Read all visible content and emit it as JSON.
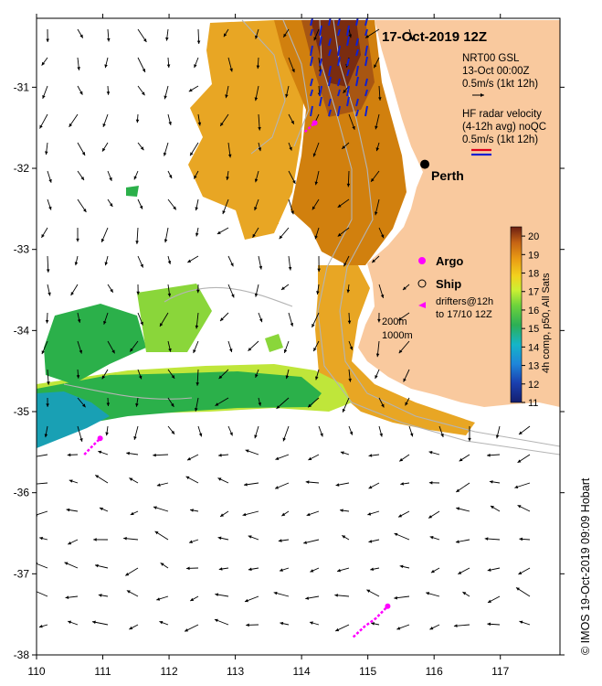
{
  "map": {
    "title": "17-Oct-2019 12Z",
    "city_label": "Perth",
    "nrt_legend": [
      "NRT00 GSL",
      "13-Oct 00:00Z",
      "0.5m/s (1kt 12h)"
    ],
    "hf_legend": [
      "HF radar velocity",
      "(4-12h avg) noQC",
      "0.5m/s (1kt 12h)"
    ],
    "argo_label": "Argo",
    "ship_label": "Ship",
    "drifter_legend": [
      "drifters@12h",
      "to 17/10 12Z"
    ],
    "isobath_labels": [
      "200m",
      "1000m"
    ],
    "colorbar_label": "4h comp, p50, All Sats",
    "credit": "© IMOS 19-Oct-2019 09:09 Hobart",
    "colors": {
      "land": "#f9c99e",
      "hf_red": "#e0001b",
      "hf_blue": "#1020d0",
      "drifter": "#ff00ff",
      "isobath": "#b4b4b4"
    }
  },
  "chart_data": {
    "type": "heatmap",
    "xaxis": {
      "range": [
        110,
        117.9
      ],
      "ticks": [
        110,
        111,
        112,
        113,
        114,
        115,
        116,
        117
      ]
    },
    "yaxis": {
      "range": [
        -38,
        -30.15
      ],
      "ticks": [
        -31,
        -32,
        -33,
        -34,
        -35,
        -36,
        -37,
        -38
      ]
    },
    "colorbar": {
      "range": [
        11,
        20.5
      ],
      "ticks": [
        11,
        12,
        13,
        14,
        15,
        16,
        17,
        18,
        19,
        20
      ]
    },
    "perth": {
      "lon": 115.86,
      "lat": -31.95
    },
    "drifter_tracks": [
      [
        [
          110.72,
          -35.53
        ],
        [
          110.85,
          -35.42
        ],
        [
          110.96,
          -35.33
        ]
      ],
      [
        [
          114.78,
          -37.78
        ],
        [
          114.95,
          -37.65
        ],
        [
          115.12,
          -37.55
        ],
        [
          115.3,
          -37.4
        ]
      ],
      [
        [
          114.05,
          -31.55
        ],
        [
          114.2,
          -31.44
        ]
      ]
    ]
  }
}
